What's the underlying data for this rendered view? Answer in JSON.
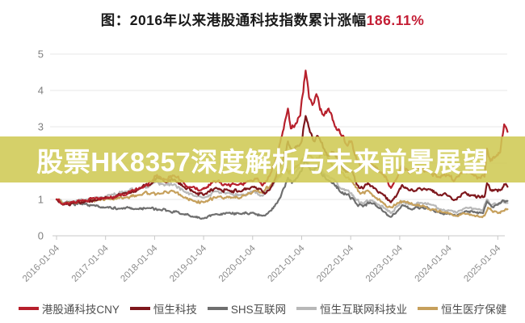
{
  "title": {
    "text": "图：2016年以来港股通科技指数累计涨幅",
    "highlight": "186.11%",
    "highlight_color": "#c41e35"
  },
  "overlay_banner": {
    "text": "股票HK8357深度解析与未来前景展望",
    "background_rgba": "rgba(207,202,84,0.88)",
    "text_color": "#ffffff"
  },
  "chart_data": {
    "type": "line",
    "title": "图：2016年以来港股通科技指数累计涨幅186.11%",
    "cumulative_gain_label": "186.11%",
    "grid": true,
    "legend_position": "bottom",
    "y_axis": {
      "ticks": [
        0,
        1,
        2,
        3,
        4,
        5
      ],
      "range": [
        0,
        5
      ],
      "tick_labels": [
        "0",
        "1",
        "2",
        "3",
        "4",
        "5"
      ]
    },
    "x_axis": {
      "tick_labels": [
        "2016-01-04",
        "2017-01-04",
        "2018-01-04",
        "2019-01-04",
        "2020-01-04",
        "2021-01-04",
        "2022-01-04",
        "2023-01-04",
        "2024-01-04",
        "2025-01-04"
      ],
      "range_years": [
        2016.0,
        2025.25
      ],
      "label_rotation_deg": -45
    },
    "series": [
      {
        "name": "港股通科技CNY",
        "color": "#b7202c",
        "points": [
          [
            0,
            1.0
          ],
          [
            0.13,
            0.87
          ],
          [
            0.3,
            0.93
          ],
          [
            0.5,
            0.96
          ],
          [
            0.75,
            1.04
          ],
          [
            1.0,
            1.03
          ],
          [
            1.25,
            1.1
          ],
          [
            1.5,
            1.22
          ],
          [
            1.75,
            1.32
          ],
          [
            1.95,
            1.5
          ],
          [
            2.05,
            1.68
          ],
          [
            2.15,
            1.55
          ],
          [
            2.4,
            1.66
          ],
          [
            2.55,
            1.5
          ],
          [
            2.75,
            1.33
          ],
          [
            2.95,
            1.26
          ],
          [
            3.2,
            1.5
          ],
          [
            3.45,
            1.42
          ],
          [
            3.7,
            1.4
          ],
          [
            3.95,
            1.52
          ],
          [
            4.1,
            1.58
          ],
          [
            4.2,
            1.38
          ],
          [
            4.35,
            1.65
          ],
          [
            4.5,
            2.2
          ],
          [
            4.58,
            2.7
          ],
          [
            4.65,
            3.1
          ],
          [
            4.72,
            3.5
          ],
          [
            4.78,
            2.95
          ],
          [
            4.88,
            3.1
          ],
          [
            4.97,
            3.3
          ],
          [
            5.08,
            4.55
          ],
          [
            5.15,
            3.8
          ],
          [
            5.22,
            3.6
          ],
          [
            5.3,
            3.9
          ],
          [
            5.42,
            3.35
          ],
          [
            5.55,
            3.5
          ],
          [
            5.68,
            3.0
          ],
          [
            5.8,
            2.78
          ],
          [
            5.92,
            2.5
          ],
          [
            6.02,
            2.6
          ],
          [
            6.12,
            2.1
          ],
          [
            6.22,
            1.85
          ],
          [
            6.3,
            2.1
          ],
          [
            6.45,
            1.95
          ],
          [
            6.6,
            1.75
          ],
          [
            6.72,
            1.62
          ],
          [
            6.82,
            1.32
          ],
          [
            6.95,
            1.6
          ],
          [
            7.05,
            1.95
          ],
          [
            7.2,
            1.72
          ],
          [
            7.4,
            1.85
          ],
          [
            7.6,
            1.78
          ],
          [
            7.8,
            1.62
          ],
          [
            8.0,
            1.68
          ],
          [
            8.1,
            1.5
          ],
          [
            8.3,
            1.75
          ],
          [
            8.5,
            1.68
          ],
          [
            8.65,
            1.58
          ],
          [
            8.73,
            1.62
          ],
          [
            8.78,
            2.4
          ],
          [
            8.85,
            2.05
          ],
          [
            8.95,
            2.18
          ],
          [
            9.05,
            2.3
          ],
          [
            9.13,
            3.07
          ],
          [
            9.2,
            2.86
          ]
        ]
      },
      {
        "name": "恒生科技",
        "color": "#7e171c",
        "points": [
          [
            0,
            1.0
          ],
          [
            0.13,
            0.85
          ],
          [
            0.35,
            0.9
          ],
          [
            0.6,
            0.95
          ],
          [
            0.85,
            1.0
          ],
          [
            1.1,
            1.05
          ],
          [
            1.4,
            1.18
          ],
          [
            1.7,
            1.3
          ],
          [
            1.95,
            1.45
          ],
          [
            2.05,
            1.6
          ],
          [
            2.2,
            1.48
          ],
          [
            2.4,
            1.55
          ],
          [
            2.6,
            1.35
          ],
          [
            2.8,
            1.2
          ],
          [
            3.0,
            1.12
          ],
          [
            3.25,
            1.32
          ],
          [
            3.5,
            1.25
          ],
          [
            3.75,
            1.22
          ],
          [
            4.0,
            1.35
          ],
          [
            4.15,
            1.3
          ],
          [
            4.25,
            1.15
          ],
          [
            4.4,
            1.4
          ],
          [
            4.55,
            1.85
          ],
          [
            4.65,
            2.3
          ],
          [
            4.72,
            2.6
          ],
          [
            4.8,
            2.3
          ],
          [
            4.9,
            2.45
          ],
          [
            5.0,
            2.6
          ],
          [
            5.08,
            3.3
          ],
          [
            5.17,
            2.85
          ],
          [
            5.25,
            2.6
          ],
          [
            5.35,
            2.7
          ],
          [
            5.45,
            2.4
          ],
          [
            5.55,
            2.2
          ],
          [
            5.65,
            2.3
          ],
          [
            5.78,
            1.95
          ],
          [
            5.9,
            1.75
          ],
          [
            6.0,
            1.8
          ],
          [
            6.12,
            1.42
          ],
          [
            6.25,
            1.3
          ],
          [
            6.35,
            1.45
          ],
          [
            6.5,
            1.3
          ],
          [
            6.65,
            1.15
          ],
          [
            6.82,
            0.92
          ],
          [
            6.95,
            1.15
          ],
          [
            7.05,
            1.4
          ],
          [
            7.2,
            1.25
          ],
          [
            7.4,
            1.32
          ],
          [
            7.6,
            1.28
          ],
          [
            7.8,
            1.12
          ],
          [
            8.0,
            1.1
          ],
          [
            8.1,
            0.98
          ],
          [
            8.3,
            1.18
          ],
          [
            8.5,
            1.12
          ],
          [
            8.65,
            1.05
          ],
          [
            8.73,
            1.08
          ],
          [
            8.78,
            1.45
          ],
          [
            8.85,
            1.25
          ],
          [
            8.95,
            1.28
          ],
          [
            9.05,
            1.25
          ],
          [
            9.13,
            1.42
          ],
          [
            9.2,
            1.35
          ]
        ]
      },
      {
        "name": "SHS互联网",
        "color": "#6f6f6f",
        "points": [
          [
            0,
            1.0
          ],
          [
            0.13,
            0.88
          ],
          [
            0.3,
            0.9
          ],
          [
            0.5,
            0.87
          ],
          [
            0.75,
            0.84
          ],
          [
            1.0,
            0.78
          ],
          [
            1.3,
            0.75
          ],
          [
            1.6,
            0.74
          ],
          [
            1.9,
            0.76
          ],
          [
            2.1,
            0.72
          ],
          [
            2.3,
            0.68
          ],
          [
            2.55,
            0.6
          ],
          [
            2.8,
            0.52
          ],
          [
            3.0,
            0.48
          ],
          [
            3.2,
            0.58
          ],
          [
            3.5,
            0.63
          ],
          [
            3.75,
            0.6
          ],
          [
            4.0,
            0.64
          ],
          [
            4.2,
            0.55
          ],
          [
            4.35,
            0.68
          ],
          [
            4.5,
            0.9
          ],
          [
            4.6,
            1.2
          ],
          [
            4.72,
            1.6
          ],
          [
            4.8,
            1.45
          ],
          [
            4.95,
            1.7
          ],
          [
            5.08,
            2.1
          ],
          [
            5.2,
            1.8
          ],
          [
            5.35,
            1.9
          ],
          [
            5.5,
            1.55
          ],
          [
            5.65,
            1.45
          ],
          [
            5.8,
            1.2
          ],
          [
            5.95,
            1.15
          ],
          [
            6.1,
            0.9
          ],
          [
            6.25,
            0.8
          ],
          [
            6.4,
            0.92
          ],
          [
            6.55,
            0.78
          ],
          [
            6.7,
            0.65
          ],
          [
            6.82,
            0.52
          ],
          [
            6.95,
            0.68
          ],
          [
            7.05,
            0.85
          ],
          [
            7.25,
            0.72
          ],
          [
            7.45,
            0.78
          ],
          [
            7.65,
            0.72
          ],
          [
            7.85,
            0.62
          ],
          [
            8.05,
            0.6
          ],
          [
            8.15,
            0.55
          ],
          [
            8.35,
            0.68
          ],
          [
            8.55,
            0.65
          ],
          [
            8.7,
            0.62
          ],
          [
            8.78,
            0.95
          ],
          [
            8.88,
            0.8
          ],
          [
            9.0,
            0.85
          ],
          [
            9.1,
            0.98
          ],
          [
            9.2,
            0.96
          ]
        ]
      },
      {
        "name": "恒生互联网科技业",
        "color": "#b8b8b8",
        "points": [
          [
            0,
            1.0
          ],
          [
            0.13,
            0.9
          ],
          [
            0.35,
            0.95
          ],
          [
            0.6,
            1.0
          ],
          [
            0.85,
            1.05
          ],
          [
            1.1,
            1.12
          ],
          [
            1.4,
            1.22
          ],
          [
            1.7,
            1.3
          ],
          [
            1.95,
            1.42
          ],
          [
            2.05,
            1.5
          ],
          [
            2.2,
            1.38
          ],
          [
            2.4,
            1.42
          ],
          [
            2.6,
            1.22
          ],
          [
            2.8,
            1.1
          ],
          [
            3.0,
            1.05
          ],
          [
            3.25,
            1.22
          ],
          [
            3.5,
            1.18
          ],
          [
            3.75,
            1.12
          ],
          [
            4.0,
            1.22
          ],
          [
            4.2,
            1.1
          ],
          [
            4.35,
            1.3
          ],
          [
            4.5,
            1.55
          ],
          [
            4.65,
            1.85
          ],
          [
            4.75,
            1.7
          ],
          [
            4.9,
            1.8
          ],
          [
            5.08,
            2.1
          ],
          [
            5.2,
            1.85
          ],
          [
            5.35,
            1.95
          ],
          [
            5.5,
            1.65
          ],
          [
            5.65,
            1.55
          ],
          [
            5.8,
            1.3
          ],
          [
            5.95,
            1.25
          ],
          [
            6.1,
            1.0
          ],
          [
            6.25,
            0.88
          ],
          [
            6.4,
            0.98
          ],
          [
            6.55,
            0.85
          ],
          [
            6.7,
            0.75
          ],
          [
            6.82,
            0.62
          ],
          [
            6.95,
            0.8
          ],
          [
            7.05,
            0.95
          ],
          [
            7.25,
            0.85
          ],
          [
            7.45,
            0.9
          ],
          [
            7.65,
            0.85
          ],
          [
            7.85,
            0.72
          ],
          [
            8.05,
            0.7
          ],
          [
            8.15,
            0.63
          ],
          [
            8.35,
            0.78
          ],
          [
            8.55,
            0.75
          ],
          [
            8.7,
            0.7
          ],
          [
            8.78,
            1.0
          ],
          [
            8.88,
            0.85
          ],
          [
            9.0,
            0.88
          ],
          [
            9.1,
            0.95
          ],
          [
            9.2,
            0.9
          ]
        ]
      },
      {
        "name": "恒生医疗保健",
        "color": "#c6a05c",
        "points": [
          [
            0,
            1.0
          ],
          [
            0.13,
            0.88
          ],
          [
            0.35,
            0.9
          ],
          [
            0.6,
            0.95
          ],
          [
            0.85,
            0.98
          ],
          [
            1.1,
            1.0
          ],
          [
            1.4,
            1.05
          ],
          [
            1.7,
            1.12
          ],
          [
            1.95,
            1.18
          ],
          [
            2.1,
            1.15
          ],
          [
            2.35,
            1.25
          ],
          [
            2.6,
            1.05
          ],
          [
            2.8,
            0.95
          ],
          [
            3.0,
            0.92
          ],
          [
            3.3,
            1.08
          ],
          [
            3.6,
            1.05
          ],
          [
            3.85,
            1.12
          ],
          [
            4.05,
            1.25
          ],
          [
            4.2,
            1.18
          ],
          [
            4.4,
            1.45
          ],
          [
            4.55,
            1.7
          ],
          [
            4.65,
            1.9
          ],
          [
            4.8,
            1.75
          ],
          [
            4.95,
            1.95
          ],
          [
            5.1,
            2.3
          ],
          [
            5.25,
            2.1
          ],
          [
            5.45,
            2.25
          ],
          [
            5.6,
            2.0
          ],
          [
            5.75,
            1.8
          ],
          [
            5.9,
            1.6
          ],
          [
            6.05,
            1.45
          ],
          [
            6.2,
            1.15
          ],
          [
            6.35,
            1.25
          ],
          [
            6.5,
            1.05
          ],
          [
            6.65,
            0.92
          ],
          [
            6.82,
            0.78
          ],
          [
            6.95,
            0.9
          ],
          [
            7.1,
            0.95
          ],
          [
            7.3,
            0.85
          ],
          [
            7.5,
            0.82
          ],
          [
            7.7,
            0.72
          ],
          [
            7.9,
            0.65
          ],
          [
            8.1,
            0.55
          ],
          [
            8.3,
            0.62
          ],
          [
            8.5,
            0.56
          ],
          [
            8.65,
            0.52
          ],
          [
            8.73,
            0.55
          ],
          [
            8.8,
            0.78
          ],
          [
            8.9,
            0.65
          ],
          [
            9.0,
            0.62
          ],
          [
            9.1,
            0.68
          ],
          [
            9.2,
            0.73
          ]
        ]
      }
    ]
  }
}
